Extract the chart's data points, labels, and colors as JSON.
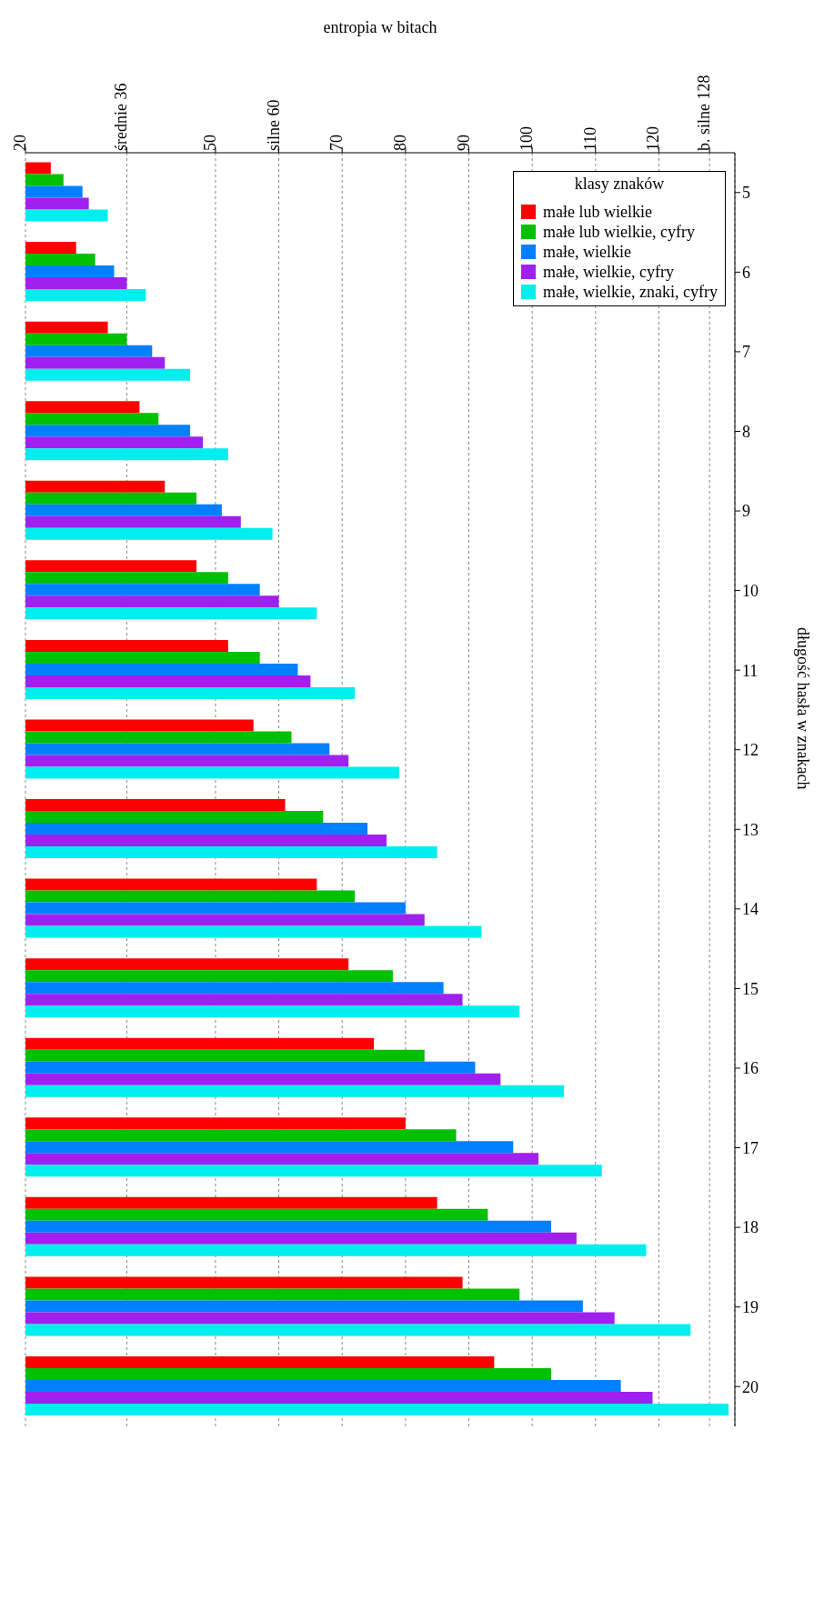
{
  "chart_data": {
    "type": "bar",
    "orientation": "horizontal",
    "xlabel": "entropia w bitach",
    "ylabel": "długość hasła w znakach",
    "legend_title": "klasy znaków",
    "legend": "top right",
    "grid": "x",
    "categories": [
      "5",
      "6",
      "7",
      "8",
      "9",
      "10",
      "11",
      "12",
      "13",
      "14",
      "15",
      "16",
      "17",
      "18",
      "19",
      "20"
    ],
    "xlim": [
      20,
      132
    ],
    "xticks": [
      20,
      {
        "value": 36,
        "label": "średnie 36"
      },
      50,
      {
        "value": 60,
        "label": "silne 60"
      },
      70,
      80,
      90,
      100,
      110,
      120,
      {
        "value": 128,
        "label": "b. silne 128"
      }
    ],
    "series": [
      {
        "name": "małe lub wielkie",
        "color": "#ff0000",
        "values": [
          24,
          28,
          33,
          38,
          42,
          47,
          52,
          56,
          61,
          66,
          71,
          75,
          80,
          85,
          89,
          94
        ]
      },
      {
        "name": "małe lub wielkie, cyfry",
        "color": "#00c000",
        "values": [
          26,
          31,
          36,
          41,
          47,
          52,
          57,
          62,
          67,
          72,
          78,
          83,
          88,
          93,
          98,
          103
        ]
      },
      {
        "name": "małe, wielkie",
        "color": "#0080ff",
        "values": [
          29,
          34,
          40,
          46,
          51,
          57,
          63,
          68,
          74,
          80,
          86,
          91,
          97,
          103,
          108,
          114
        ]
      },
      {
        "name": "małe, wielkie, cyfry",
        "color": "#a020f0",
        "values": [
          30,
          36,
          42,
          48,
          54,
          60,
          65,
          71,
          77,
          83,
          89,
          95,
          101,
          107,
          113,
          119
        ]
      },
      {
        "name": "małe, wielkie, znaki, cyfry",
        "color": "#00eeee",
        "values": [
          33,
          39,
          46,
          52,
          59,
          66,
          72,
          79,
          85,
          92,
          98,
          105,
          111,
          118,
          125,
          131
        ]
      }
    ]
  }
}
